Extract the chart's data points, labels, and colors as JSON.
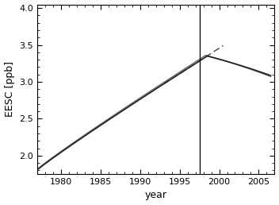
{
  "xlabel": "year",
  "ylabel": "EESC [ppb]",
  "xlim": [
    1977.0,
    2007.0
  ],
  "ylim": [
    1.75,
    4.05
  ],
  "xticks": [
    1980,
    1985,
    1990,
    1995,
    2000,
    2005
  ],
  "yticks": [
    2.0,
    2.5,
    3.0,
    3.5,
    4.0
  ],
  "vline_x": 1997.5,
  "main_color": "#222222",
  "dash_color": "#444444",
  "figsize": [
    3.52,
    2.58
  ],
  "dpi": 100,
  "xlabel_fontsize": 9,
  "ylabel_fontsize": 9,
  "tick_labelsize": 8
}
